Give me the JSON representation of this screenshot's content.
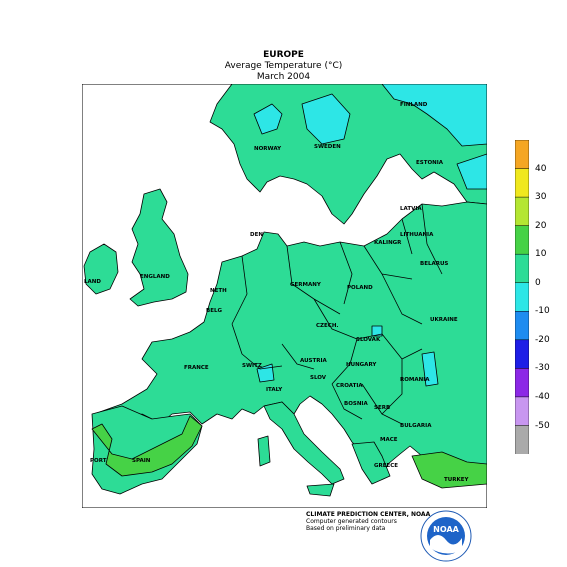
{
  "title": {
    "line1": "EUROPE",
    "line2": "Average Temperature (°C)",
    "line3": "March 2004"
  },
  "legend": {
    "labels": [
      "40",
      "30",
      "20",
      "10",
      "0",
      "-10",
      "-20",
      "-30",
      "-40",
      "-50"
    ],
    "colors": [
      "#f5a623",
      "#f0e81e",
      "#b4e632",
      "#46d246",
      "#2ddc96",
      "#2de6e6",
      "#1e8cf0",
      "#1e1ee6",
      "#8c28e6",
      "#c896f0",
      "#aaaaaa"
    ]
  },
  "countries": {
    "finland": "FINLAND",
    "norway": "NORWAY",
    "sweden": "SWEDEN",
    "estonia": "ESTONIA",
    "latvia": "LATVIA",
    "lithuania": "LITHUANIA",
    "belarus": "BELARUS",
    "denmark": "DEN",
    "england": "ENGLAND",
    "ireland": "LAND",
    "netherlands": "NETH",
    "belgium": "BELG",
    "germany": "GERMANY",
    "poland": "POLAND",
    "ukraine": "UKRAINE",
    "czech": "CZECH.",
    "slovakia": "SLOVAK",
    "france": "FRANCE",
    "switzerland": "SWITZ",
    "austria": "AUSTRIA",
    "hungary": "HUNGARY",
    "romania": "ROMANIA",
    "slovenia": "SLOV",
    "croatia": "CROATIA",
    "bosnia": "BOSNIA",
    "serbia": "SERB",
    "bulgaria": "BULGARIA",
    "macedonia": "MACE",
    "italy": "ITALY",
    "spain": "SPAIN",
    "portugal": "PORT",
    "greece": "GREECE",
    "turkey": "TURKEY",
    "kaliningrad": "KALINGR"
  },
  "credits": {
    "line1": "CLIMATE PREDICTION CENTER, NOAA",
    "line2": "Computer generated contours",
    "line3": "Based on preliminary data"
  },
  "logo": {
    "text": "NOAA"
  }
}
